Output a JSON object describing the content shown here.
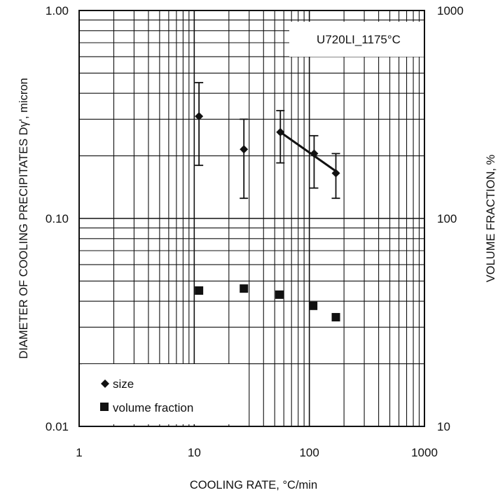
{
  "chart_data": {
    "type": "scatter",
    "x_scale": "log",
    "y_scale": "log",
    "y2_scale": "log",
    "xlim": [
      1,
      1000
    ],
    "ylim": [
      0.01,
      1.0
    ],
    "y2lim": [
      10,
      1000
    ],
    "grid": true,
    "legend_position": "bottom-left",
    "xlabel": "COOLING RATE, °C/min",
    "ylabel": "DIAMETER OF COOLING PRECIPITATES Dγ', micron",
    "ylabel2": "VOLUME FRACTION, %",
    "annotation": "U720LI_1175°C",
    "x_ticks": [
      "1",
      "10",
      "100",
      "1000"
    ],
    "y_ticks": [
      "0.01",
      "0.10",
      "1.00"
    ],
    "y2_ticks": [
      "10",
      "100",
      "1000"
    ],
    "legend": [
      {
        "label": "size",
        "marker": "diamond"
      },
      {
        "label": "volume fraction",
        "marker": "square"
      }
    ],
    "series": [
      {
        "name": "size",
        "axis": "left",
        "marker": "diamond",
        "points": [
          {
            "x": 11,
            "y": 0.31,
            "ylow": 0.18,
            "yhigh": 0.45
          },
          {
            "x": 27,
            "y": 0.215,
            "ylow": 0.125,
            "yhigh": 0.3
          },
          {
            "x": 56,
            "y": 0.26,
            "ylow": 0.185,
            "yhigh": 0.33
          },
          {
            "x": 110,
            "y": 0.205,
            "ylow": 0.14,
            "yhigh": 0.25
          },
          {
            "x": 170,
            "y": 0.165,
            "ylow": 0.125,
            "yhigh": 0.205
          }
        ],
        "fit_line": [
          {
            "x": 56,
            "y": 0.26
          },
          {
            "x": 180,
            "y": 0.165
          }
        ]
      },
      {
        "name": "volume fraction",
        "axis": "right",
        "marker": "square",
        "points": [
          {
            "x": 11,
            "y": 45
          },
          {
            "x": 27,
            "y": 46
          },
          {
            "x": 55,
            "y": 43
          },
          {
            "x": 108,
            "y": 38
          },
          {
            "x": 170,
            "y": 33.5
          }
        ]
      }
    ]
  }
}
